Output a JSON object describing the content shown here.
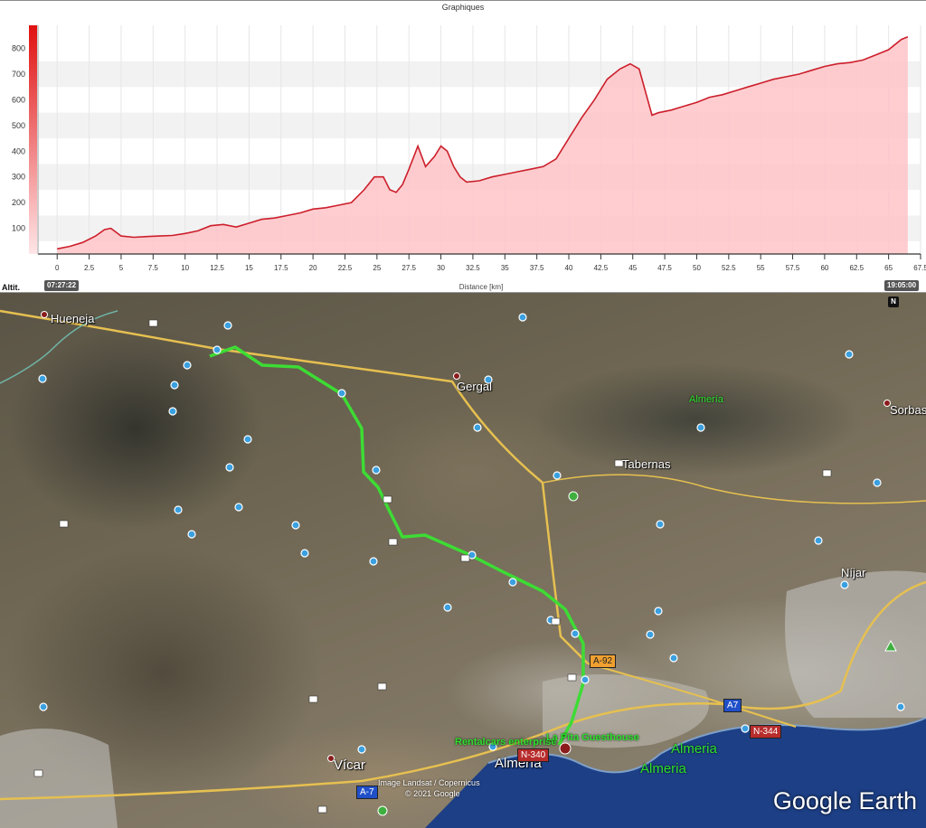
{
  "panel": {
    "title": "Graphiques",
    "y_label": "Altit.",
    "x_label": "Distance [km]",
    "start_time": "07:27:22",
    "end_time": "19:05:00"
  },
  "chart_data": {
    "type": "area",
    "title": "Graphiques",
    "xlabel": "Distance [km]",
    "ylabel": "Altit.",
    "xlim": [
      -1.5,
      67.5
    ],
    "ylim": [
      0,
      890
    ],
    "x_ticks": [
      0,
      2.5,
      5,
      7.5,
      10,
      12.5,
      15,
      17.5,
      20,
      22.5,
      25,
      27.5,
      30,
      32.5,
      35,
      37.5,
      40,
      42.5,
      45,
      47.5,
      50,
      52.5,
      55,
      57.5,
      60,
      62.5,
      65,
      67.5
    ],
    "x_tick_labels": [
      "0",
      "2.5",
      "5",
      "7.5",
      "10",
      "12.5",
      "15",
      "17.5",
      "20",
      "22.5",
      "25",
      "27.5",
      "30",
      "32.5",
      "35",
      "37.5",
      "40",
      "42.5",
      "45",
      "47.5",
      "50",
      "52.5",
      "55",
      "57.5",
      "60",
      "62.5",
      "65",
      "67.5"
    ],
    "y_ticks": [
      100,
      200,
      300,
      400,
      500,
      600,
      700,
      800
    ],
    "grid": true,
    "fill_color": "#ffc4c8",
    "line_color": "#cc1f2b",
    "x": [
      0,
      1,
      2,
      3,
      3.7,
      4.2,
      5,
      6,
      7,
      8,
      9,
      10,
      11,
      12,
      13,
      14,
      15,
      16,
      17,
      18,
      19,
      20,
      21,
      22,
      23,
      24,
      24.8,
      25.5,
      26,
      26.5,
      27,
      27.5,
      28.2,
      28.8,
      29.5,
      30,
      30.5,
      31,
      31.5,
      32,
      33,
      34,
      35,
      36,
      37,
      38,
      39,
      40,
      41,
      42,
      43,
      44,
      44.8,
      45.5,
      46.5,
      47,
      48,
      49,
      50,
      51,
      52,
      53,
      54,
      55,
      56,
      57,
      58,
      59,
      60,
      61,
      62,
      63,
      64,
      65,
      66,
      66.5
    ],
    "y": [
      20,
      30,
      45,
      70,
      95,
      100,
      70,
      65,
      68,
      70,
      72,
      80,
      90,
      110,
      115,
      105,
      120,
      135,
      140,
      150,
      160,
      175,
      180,
      190,
      200,
      250,
      300,
      300,
      250,
      240,
      270,
      330,
      420,
      340,
      380,
      420,
      400,
      340,
      300,
      280,
      285,
      300,
      310,
      320,
      330,
      340,
      370,
      450,
      530,
      600,
      680,
      720,
      740,
      720,
      540,
      550,
      560,
      575,
      590,
      610,
      620,
      635,
      650,
      665,
      680,
      690,
      700,
      715,
      730,
      740,
      745,
      755,
      775,
      795,
      835,
      845
    ]
  },
  "map": {
    "places": [
      {
        "label": "Hueneja"
      },
      {
        "label": "Gergal"
      },
      {
        "label": "Tabernas"
      },
      {
        "label": "Sorbas"
      },
      {
        "label": "Níjar"
      },
      {
        "label": "Vícar"
      },
      {
        "label": "Almería"
      }
    ],
    "green_labels": {
      "region": "Almería",
      "city_big_1": "Almeria",
      "city_big_2": "Almeria",
      "rent": "Rentalcars enterprise",
      "guesthouse": "La Pita Guesthouse"
    },
    "roads": {
      "a92": "A-92",
      "a7_east": "A7",
      "a7_west": "A-7",
      "n344": "N-344",
      "n340": "N-340"
    },
    "credit_line1": "Image Landsat / Copernicus",
    "credit_line2": "© 2021 Google",
    "brand": "Google Earth",
    "north": "N"
  }
}
